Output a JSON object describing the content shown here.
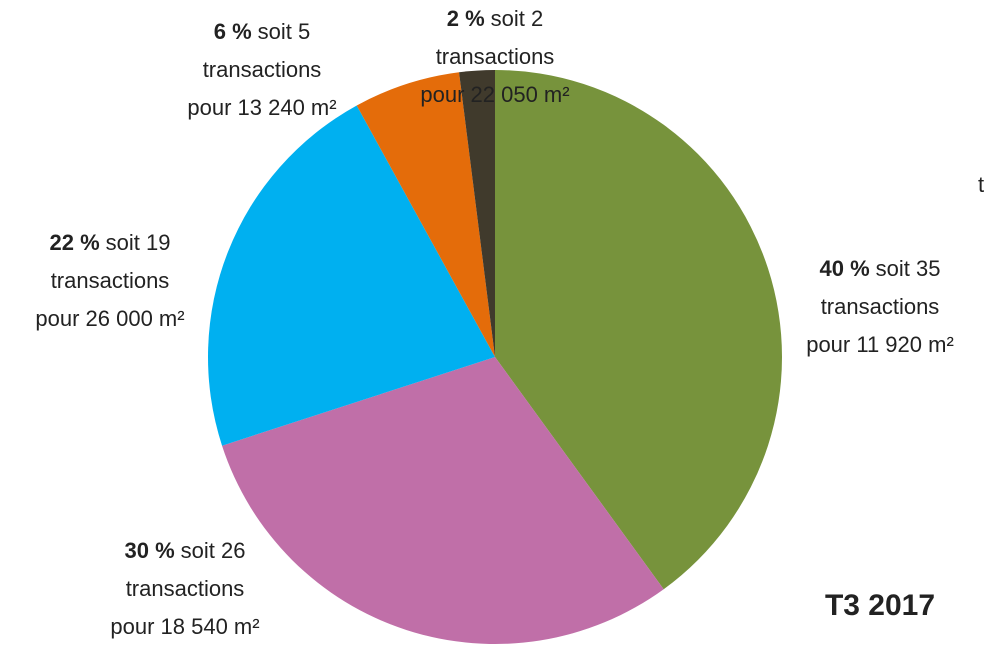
{
  "chart_data": {
    "type": "pie",
    "title": "T3 2017",
    "values": [
      40,
      30,
      22,
      6,
      2
    ],
    "value_labels": [
      "40 %",
      "30 %",
      "22 %",
      "6 %",
      "2 %"
    ],
    "colors": [
      "#77933c",
      "#c06fa8",
      "#00b0f0",
      "#e46c0a",
      "#403a2c"
    ],
    "details": [
      [
        "soit 35",
        "transactions",
        "pour 11 920 m²"
      ],
      [
        "soit 26",
        "transactions",
        "pour 18 540 m²"
      ],
      [
        "soit 19",
        "transactions",
        "pour 26 000 m²"
      ],
      [
        "soit 5",
        "transactions",
        "pour 13 240 m²"
      ],
      [
        "soit 2",
        "transactions",
        "pour 22 050 m²"
      ]
    ],
    "annotation": "t"
  }
}
